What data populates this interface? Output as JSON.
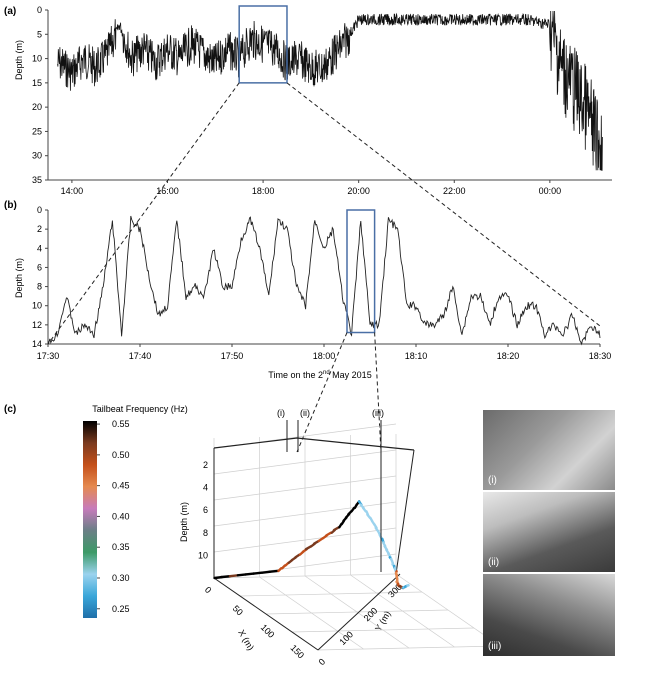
{
  "panels": {
    "a": "(a)",
    "b": "(b)",
    "c": "(c)"
  },
  "chart_data": [
    {
      "type": "line",
      "panel": "(a)",
      "ylabel": "Depth (m)",
      "xticks": [
        "14:00",
        "16:00",
        "18:00",
        "20:00",
        "22:00",
        "00:00"
      ],
      "yticks": [
        0,
        5,
        10,
        15,
        20,
        25,
        30,
        35
      ],
      "ylim": [
        35,
        0
      ],
      "xlim_hours": [
        13.5,
        25.3
      ],
      "highlight_window": [
        "17:30",
        "18:30"
      ],
      "series": [
        {
          "x_hours": [
            13.5,
            13.75,
            14.0,
            14.25,
            14.5,
            14.75,
            15.0,
            15.25,
            15.5,
            15.75,
            16.0,
            16.25,
            16.5,
            16.75,
            17.0,
            17.25,
            17.5,
            17.75,
            18.0,
            18.25,
            18.5,
            18.75,
            19.0,
            19.25,
            19.5,
            19.75,
            20.0,
            20.5,
            21.0,
            21.5,
            22.0,
            22.5,
            23.0,
            23.5,
            24.0,
            24.25,
            24.5,
            24.75,
            25.0,
            25.1
          ],
          "values": [
            12,
            11,
            13,
            10,
            12,
            9,
            3,
            10,
            8,
            11,
            8,
            10,
            7,
            9,
            11,
            8,
            10,
            6,
            7,
            8,
            11,
            10,
            12,
            12,
            9,
            6,
            2,
            2,
            2,
            2,
            2,
            2,
            2,
            2,
            3,
            12,
            16,
            20,
            27,
            28
          ]
        }
      ]
    },
    {
      "type": "line",
      "panel": "(b)",
      "ylabel": "Depth (m)",
      "xlabel": "Time on the 2nd May 2015",
      "xticks": [
        "17:30",
        "17:40",
        "17:50",
        "18:00",
        "18:10",
        "18:20",
        "18:30"
      ],
      "yticks": [
        0,
        2,
        4,
        6,
        8,
        10,
        12,
        14
      ],
      "ylim": [
        14,
        0
      ],
      "xlim_min": [
        0,
        60
      ],
      "highlight_window": [
        "18:02",
        "18:05"
      ],
      "series": [
        {
          "x_min": [
            0,
            1,
            2,
            3,
            4,
            5,
            6,
            7,
            8,
            9,
            10,
            11,
            12,
            13,
            14,
            15,
            16,
            17,
            18,
            19,
            20,
            21,
            22,
            23,
            24,
            25,
            26,
            27,
            28,
            29,
            30,
            31,
            32,
            33,
            34,
            35,
            36,
            37,
            38,
            39,
            40,
            41,
            42,
            43,
            44,
            45,
            46,
            47,
            48,
            49,
            50,
            51,
            52,
            53,
            54,
            55,
            56,
            57,
            58,
            59,
            60
          ],
          "values": [
            14,
            13,
            9,
            13,
            12,
            13,
            8,
            1,
            13,
            1,
            2,
            7,
            11,
            10,
            1,
            9,
            8,
            9,
            4,
            8,
            8,
            3,
            1,
            4,
            9,
            1,
            2,
            8,
            10,
            1,
            4,
            2,
            9,
            13,
            1,
            12,
            12,
            1,
            2,
            10,
            10,
            12,
            12,
            11,
            8,
            13,
            9,
            9,
            12,
            9,
            9,
            12,
            10,
            10,
            13,
            12,
            13,
            11,
            14,
            12,
            13
          ]
        }
      ]
    },
    {
      "type": "line",
      "panel": "(c)",
      "subtype": "3d-track",
      "colorbar_title": "Tailbeat Frequency (Hz)",
      "colorbar_ticks": [
        0.55,
        0.5,
        0.45,
        0.4,
        0.35,
        0.3,
        0.25
      ],
      "colormap": [
        "#1f6fa9",
        "#3aa6d9",
        "#9bd3ee",
        "#3c9a67",
        "#6a7f86",
        "#c77bbb",
        "#e58a50",
        "#c4501b",
        "#7a3a1f",
        "#000000"
      ],
      "zlabel": "Depth (m)",
      "zticks": [
        2,
        4,
        6,
        8,
        10
      ],
      "xlabel": "X (m)",
      "xticks": [
        0,
        50,
        100,
        150
      ],
      "ylabel": "Y (m)",
      "yticks": [
        0,
        100,
        200,
        300
      ],
      "markers": [
        "(i)",
        "(ii)",
        "(iii)"
      ],
      "track": [
        {
          "x": 0,
          "y": 0,
          "depth": 12,
          "tbf": 0.55
        },
        {
          "x": 40,
          "y": 70,
          "depth": 10,
          "tbf": 0.5
        },
        {
          "x": 70,
          "y": 90,
          "depth": 7,
          "tbf": 0.5
        },
        {
          "x": 100,
          "y": 115,
          "depth": 4,
          "tbf": 0.55
        },
        {
          "x": 120,
          "y": 130,
          "depth": 1,
          "tbf": 0.3
        },
        {
          "x": 130,
          "y": 150,
          "depth": 3,
          "tbf": 0.3
        },
        {
          "x": 120,
          "y": 185,
          "depth": 6,
          "tbf": 0.3
        },
        {
          "x": 100,
          "y": 215,
          "depth": 8,
          "tbf": 0.45
        },
        {
          "x": 80,
          "y": 240,
          "depth": 10,
          "tbf": 0.5
        },
        {
          "x": 60,
          "y": 270,
          "depth": 11,
          "tbf": 0.28
        },
        {
          "x": 40,
          "y": 300,
          "depth": 11.5,
          "tbf": 0.25
        }
      ]
    }
  ],
  "photos": [
    {
      "label": "(i)"
    },
    {
      "label": "(ii)"
    },
    {
      "label": "(iii)"
    }
  ]
}
